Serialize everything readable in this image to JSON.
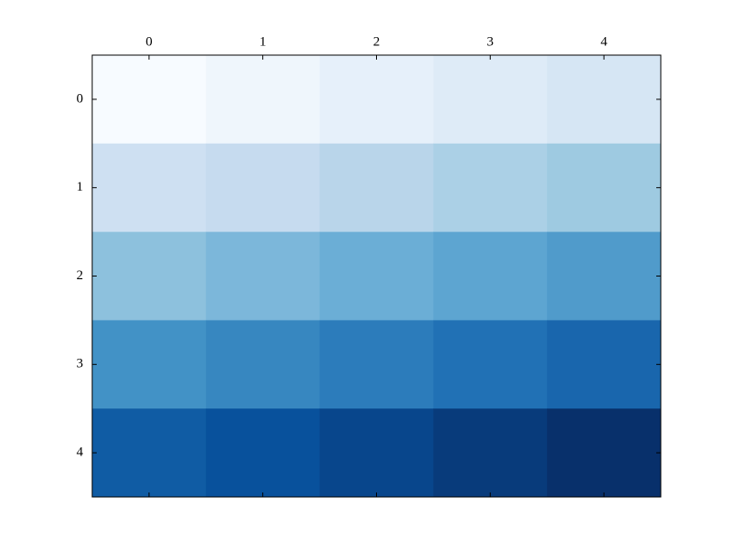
{
  "chart_data": {
    "type": "heatmap",
    "cmap": "Blues",
    "z": [
      [
        0,
        1,
        2,
        3,
        4
      ],
      [
        5,
        6,
        7,
        8,
        9
      ],
      [
        10,
        11,
        12,
        13,
        14
      ],
      [
        15,
        16,
        17,
        18,
        19
      ],
      [
        20,
        21,
        22,
        23,
        24
      ]
    ],
    "xlim": [
      -0.5,
      4.5
    ],
    "ylim": [
      4.5,
      -0.5
    ],
    "xticks": [
      0,
      1,
      2,
      3,
      4
    ],
    "yticks": [
      0,
      1,
      2,
      3,
      4
    ]
  }
}
